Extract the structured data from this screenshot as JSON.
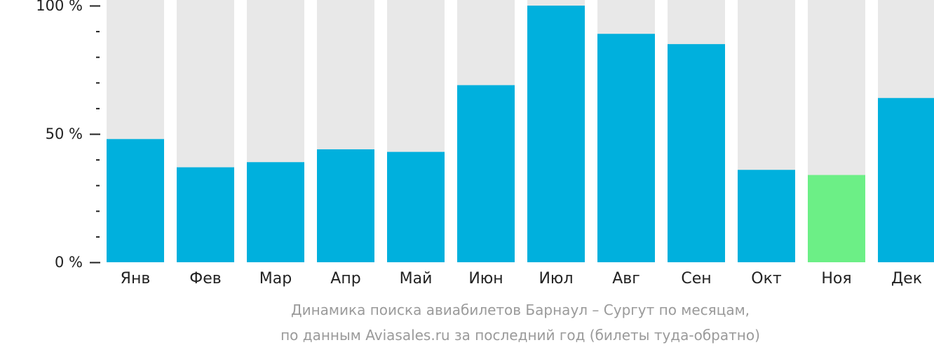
{
  "chart_data": {
    "type": "bar",
    "categories": [
      "Янв",
      "Фев",
      "Мар",
      "Апр",
      "Май",
      "Июн",
      "Июл",
      "Авг",
      "Сен",
      "Окт",
      "Ноя",
      "Дек"
    ],
    "values": [
      48,
      37,
      39,
      44,
      43,
      69,
      100,
      89,
      85,
      36,
      34,
      64
    ],
    "ylim": [
      0,
      100
    ],
    "y_ticks": [
      {
        "value": 100,
        "label": "100 %"
      },
      {
        "value": 50,
        "label": "50 %"
      },
      {
        "value": 0,
        "label": "0 %"
      }
    ],
    "minor_tick_step": 10,
    "highlight_index": 10,
    "colors": {
      "bar": "#00b0dd",
      "highlight": "#6cef86",
      "background_bar": "#e8e8e8",
      "axis": "#222222",
      "text": "#222222"
    },
    "caption": [
      "Динамика поиска авиабилетов Барнаул – Сургут по месяцам,",
      "по данным Aviasales.ru за последний год (билеты туда-обратно)"
    ]
  }
}
